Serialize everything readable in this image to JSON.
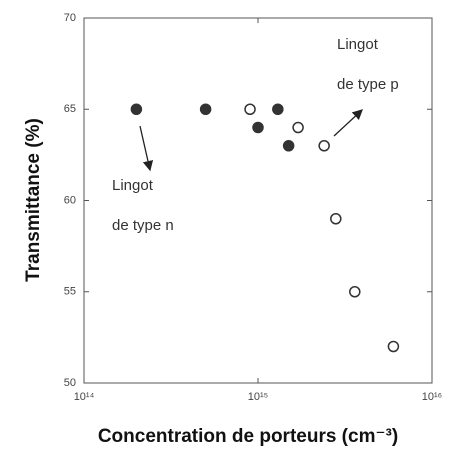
{
  "chart_data": {
    "type": "scatter",
    "xlabel": "Concentration de porteurs (cm⁻³)",
    "ylabel": "Transmittance (%)",
    "xscale": "log",
    "xlim": [
      100000000000000,
      10000000000000000
    ],
    "xticks": [
      {
        "value": 100000000000000,
        "label": "10¹⁴"
      },
      {
        "value": 1000000000000000,
        "label": "10¹⁵"
      },
      {
        "value": 10000000000000000,
        "label": "10¹⁶"
      }
    ],
    "ylim": [
      50,
      70
    ],
    "yticks": [
      50,
      55,
      60,
      65,
      70
    ],
    "series": [
      {
        "color": "#333333",
        "filled": true,
        "x": [
          200000000000000,
          500000000000000,
          1000000000000000,
          1300000000000000,
          1500000000000000
        ],
        "values": [
          65,
          65,
          64,
          65,
          63
        ]
      },
      {
        "color": "#333333",
        "filled": false,
        "x": [
          900000000000000,
          1700000000000000,
          2400000000000000,
          2800000000000000,
          3600000000000000,
          6000000000000000
        ],
        "values": [
          65,
          64,
          63,
          59,
          55,
          52
        ]
      }
    ],
    "annotations": [
      {
        "lines": [
          "Lingot",
          "de type n"
        ]
      },
      {
        "lines": [
          "Lingot",
          "de type p"
        ]
      }
    ]
  }
}
